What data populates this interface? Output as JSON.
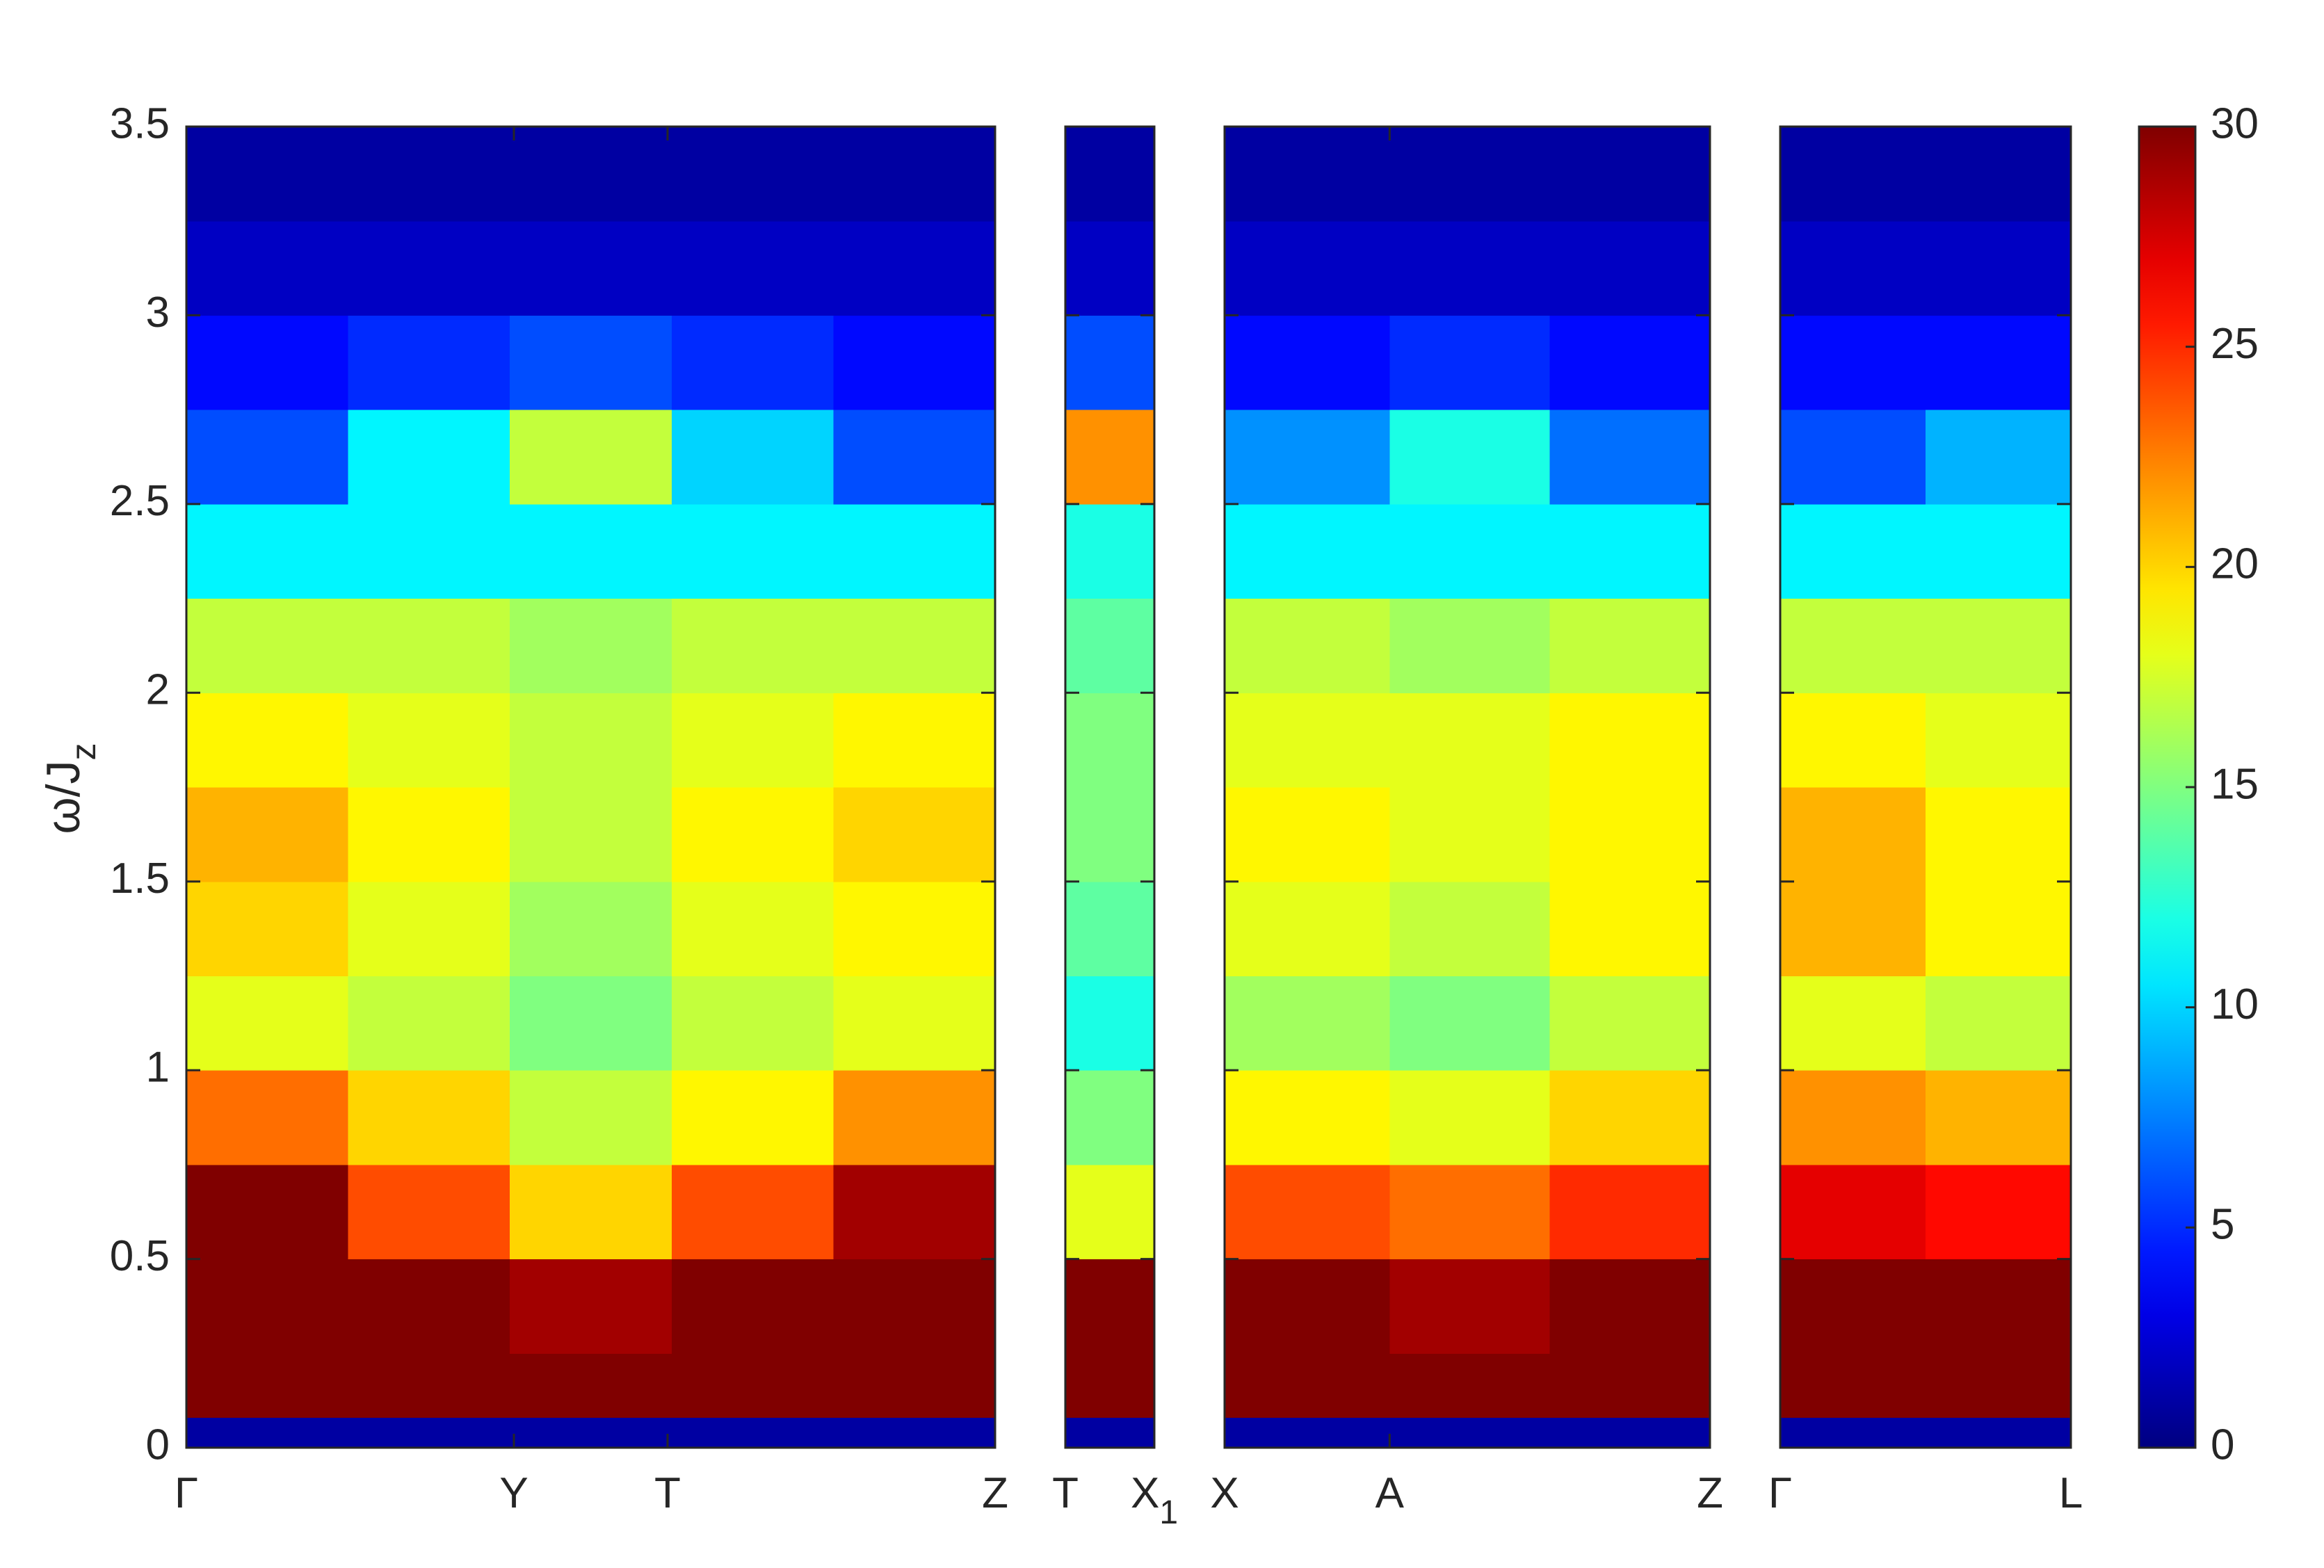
{
  "chart_data": {
    "type": "heatmap",
    "ylabel": "ω/J",
    "ylabel_subscript": "z",
    "ylim": [
      0,
      3.5
    ],
    "yticks": [
      0,
      0.5,
      1,
      1.5,
      2,
      2.5,
      3,
      3.5
    ],
    "y_bins": [
      0,
      0.08,
      0.25,
      0.5,
      0.75,
      1,
      1.25,
      1.5,
      1.75,
      2,
      2.25,
      2.5,
      2.75,
      3,
      3.25,
      3.5
    ],
    "colormap": "jet",
    "clim": [
      0,
      30
    ],
    "cticks": [
      0,
      5,
      10,
      15,
      20,
      25,
      30
    ],
    "panels": [
      {
        "xlim": [
          0,
          1
        ],
        "xticks": [
          {
            "value": 0,
            "label": "Γ"
          },
          {
            "value": 0.405,
            "label": "Y"
          },
          {
            "value": 0.595,
            "label": "T"
          },
          {
            "value": 1,
            "label": "Z"
          }
        ],
        "x_bins": [
          0,
          0.2,
          0.4,
          0.6,
          0.8,
          1
        ],
        "z": [
          [
            1,
            1,
            1,
            1,
            1
          ],
          [
            30,
            30,
            30,
            30,
            30
          ],
          [
            30,
            30,
            29,
            30,
            30
          ],
          [
            30,
            24,
            20,
            24,
            29
          ],
          [
            23,
            20,
            17,
            19,
            22
          ],
          [
            18,
            17,
            15,
            17,
            18
          ],
          [
            20,
            18,
            16,
            18,
            19
          ],
          [
            21,
            19,
            17,
            19,
            20
          ],
          [
            19,
            18,
            17,
            18,
            19
          ],
          [
            17,
            17,
            16,
            17,
            17
          ],
          [
            11,
            11,
            11,
            11,
            11
          ],
          [
            6,
            11,
            17,
            10,
            6
          ],
          [
            4,
            5,
            6,
            5,
            4
          ],
          [
            2,
            2,
            2,
            2,
            2
          ],
          [
            1,
            1,
            1,
            1,
            1
          ]
        ]
      },
      {
        "xlim": [
          0,
          1
        ],
        "xticks": [
          {
            "value": 0,
            "label": "T"
          },
          {
            "value": 1,
            "label": "X",
            "subscript": "1"
          }
        ],
        "x_bins": [
          0,
          1
        ],
        "z": [
          [
            1
          ],
          [
            30
          ],
          [
            30
          ],
          [
            18
          ],
          [
            15
          ],
          [
            12
          ],
          [
            14
          ],
          [
            15
          ],
          [
            15
          ],
          [
            14
          ],
          [
            12
          ],
          [
            22
          ],
          [
            6
          ],
          [
            2
          ],
          [
            1
          ]
        ]
      },
      {
        "xlim": [
          0,
          1
        ],
        "xticks": [
          {
            "value": 0,
            "label": "X"
          },
          {
            "value": 0.34,
            "label": "A"
          },
          {
            "value": 1,
            "label": "Z"
          }
        ],
        "x_bins": [
          0,
          0.34,
          0.67,
          1
        ],
        "z": [
          [
            1,
            1,
            1
          ],
          [
            30,
            30,
            30
          ],
          [
            30,
            29,
            30
          ],
          [
            24,
            23,
            25
          ],
          [
            19,
            18,
            20
          ],
          [
            16,
            15,
            17
          ],
          [
            18,
            17,
            19
          ],
          [
            19,
            18,
            19
          ],
          [
            18,
            18,
            19
          ],
          [
            17,
            16,
            17
          ],
          [
            11,
            11,
            11
          ],
          [
            8,
            12,
            7
          ],
          [
            4,
            5,
            4
          ],
          [
            2,
            2,
            2
          ],
          [
            1,
            1,
            1
          ]
        ]
      },
      {
        "xlim": [
          0,
          1
        ],
        "xticks": [
          {
            "value": 0,
            "label": "Γ"
          },
          {
            "value": 1,
            "label": "L"
          }
        ],
        "x_bins": [
          0,
          0.5,
          1
        ],
        "z": [
          [
            1,
            1
          ],
          [
            30,
            30
          ],
          [
            30,
            30
          ],
          [
            27,
            26
          ],
          [
            22,
            21
          ],
          [
            18,
            17
          ],
          [
            21,
            19
          ],
          [
            21,
            19
          ],
          [
            19,
            18
          ],
          [
            17,
            17
          ],
          [
            11,
            11
          ],
          [
            6,
            9
          ],
          [
            4,
            4
          ],
          [
            2,
            2
          ],
          [
            1,
            1
          ]
        ]
      }
    ]
  }
}
